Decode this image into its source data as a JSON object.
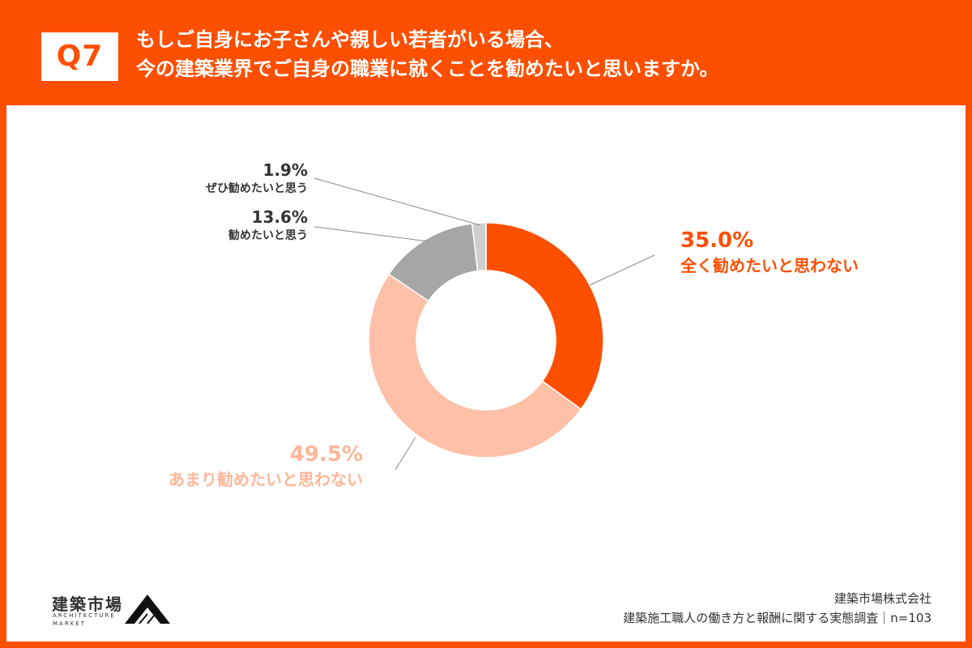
{
  "header": {
    "badge": "Q7",
    "question_line1": "もしご自身にお子さんや親しい若者がいる場合、",
    "question_line2": "今の建築業界でご自身の職業に就くことを勧めたいと思いますか。"
  },
  "colors": {
    "brand": "#fd4f00",
    "slice_1": "#fd4f00",
    "slice_2": "#ffc0a8",
    "slice_3": "#a6a6a6",
    "slice_4": "#cfcfcf",
    "label_dark": "#333333"
  },
  "chart_data": {
    "type": "pie",
    "style": "donut",
    "start": "12 o'clock, clockwise",
    "slices": [
      {
        "pct_label": "35.0%",
        "category": "全く勧めたいと思わない",
        "value": 35.0
      },
      {
        "pct_label": "49.5%",
        "category": "あまり勧めたいと思わない",
        "value": 49.5
      },
      {
        "pct_label": "13.6%",
        "category": "勧めたいと思う",
        "value": 13.6
      },
      {
        "pct_label": "1.9%",
        "category": "ぜひ勧めたいと思う",
        "value": 1.9
      }
    ]
  },
  "logo": {
    "name_jp": "建築市場",
    "name_en_line1": "ARCHITECTURE",
    "name_en_line2": "MARKET",
    "mark_icon": "mountain-triangle-icon"
  },
  "footer": {
    "company": "建築市場株式会社",
    "survey": "建築施工職人の働き方と報酬に関する実態調査｜n=103"
  }
}
